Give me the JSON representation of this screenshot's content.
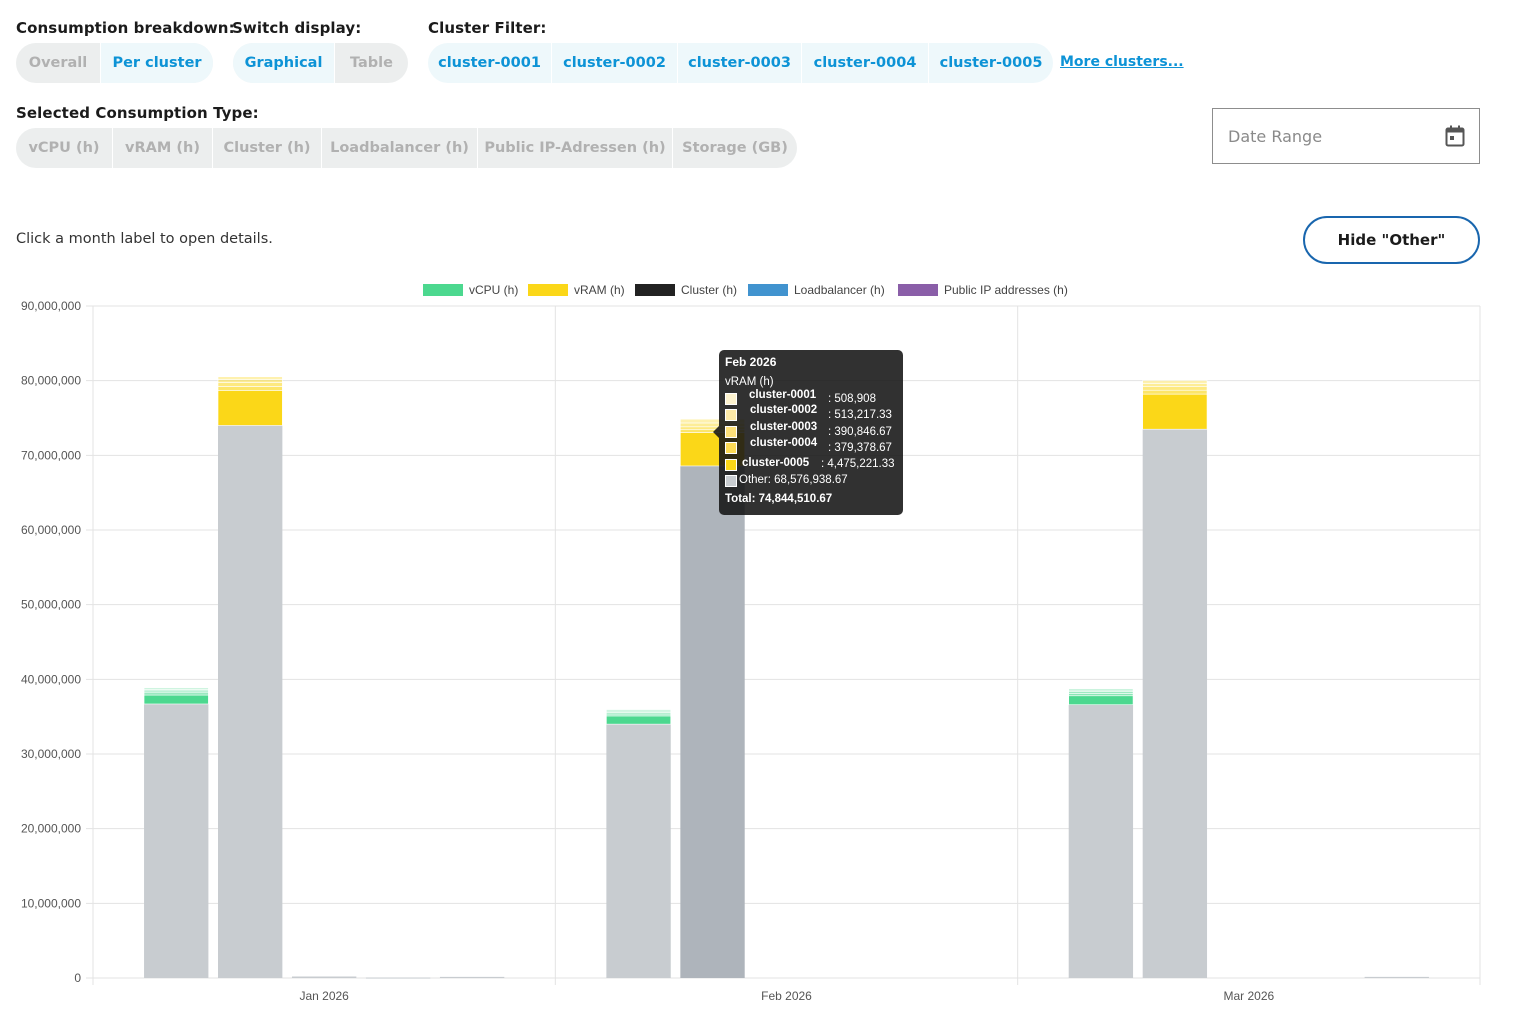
{
  "controls": {
    "breakdown": {
      "label": "Consumption breakdown:",
      "options": [
        "Overall",
        "Per cluster"
      ],
      "active": 1
    },
    "display": {
      "label": "Switch display:",
      "options": [
        "Graphical",
        "Table"
      ],
      "active": 0
    },
    "cluster_filter": {
      "label": "Cluster Filter:",
      "clusters": [
        "cluster-0001",
        "cluster-0002",
        "cluster-0003",
        "cluster-0004",
        "cluster-0005"
      ],
      "more_label": "More clusters..."
    },
    "consumption_type": {
      "label": "Selected Consumption Type:",
      "options": [
        "vCPU (h)",
        "vRAM (h)",
        "Cluster (h)",
        "Loadbalancer (h)",
        "Public IP-Adressen (h)",
        "Storage (GB)"
      ]
    },
    "date_range": {
      "placeholder": "Date Range"
    },
    "hint": "Click a month label to open details.",
    "hide_other_label": "Hide \"Other\""
  },
  "chart_data": {
    "type": "bar",
    "stacked": true,
    "categories": [
      "Jan 2026",
      "Feb 2026",
      "Mar 2026"
    ],
    "ylim": [
      0,
      90000000
    ],
    "yticks": [
      0,
      10000000,
      20000000,
      30000000,
      40000000,
      50000000,
      60000000,
      70000000,
      80000000,
      90000000
    ],
    "ytick_labels": [
      "0",
      "10,000,000",
      "20,000,000",
      "30,000,000",
      "40,000,000",
      "50,000,000",
      "60,000,000",
      "70,000,000",
      "80,000,000",
      "90,000,000"
    ],
    "legend": [
      {
        "name": "vCPU (h)",
        "color": "#4cd88f"
      },
      {
        "name": "vRAM (h)",
        "color": "#fbd718"
      },
      {
        "name": "Cluster (h)",
        "color": "#222222"
      },
      {
        "name": "Loadbalancer (h)",
        "color": "#4193cf"
      },
      {
        "name": "Public IP addresses (h)",
        "color": "#8a5ea8"
      }
    ],
    "legend_position": "top",
    "other_color": "#c8ccd0",
    "grid": true,
    "groups": [
      {
        "series": "vCPU (h)",
        "color": "#4cd88f",
        "other": [
          36700000,
          34000000,
          36600000
        ],
        "clusters": [
          [
            1200000,
            300000,
            250000,
            200000,
            200000
          ],
          [
            1100000,
            250000,
            200000,
            200000,
            200000
          ],
          [
            1200000,
            300000,
            250000,
            200000,
            200000
          ]
        ]
      },
      {
        "series": "vRAM (h)",
        "color": "#fbd718",
        "other": [
          74000000,
          68576938.67,
          73500000
        ],
        "clusters": [
          [
            4700000,
            520000,
            520000,
            400000,
            390000
          ],
          [
            4475221.33,
            379378.67,
            390846.67,
            513217.33,
            508908
          ],
          [
            4700000,
            520000,
            520000,
            400000,
            390000
          ]
        ]
      },
      {
        "series": "Cluster (h)",
        "color": "#222222",
        "other": [
          200000,
          0,
          0
        ],
        "clusters": [
          [
            0,
            0,
            0,
            0,
            0
          ],
          [
            0,
            0,
            0,
            0,
            0
          ],
          [
            0,
            0,
            0,
            0,
            0
          ]
        ]
      },
      {
        "series": "Loadbalancer (h)",
        "color": "#4193cf",
        "other": [
          60000,
          0,
          0
        ],
        "clusters": [
          [
            0,
            0,
            0,
            0,
            0
          ],
          [
            0,
            0,
            0,
            0,
            0
          ],
          [
            0,
            0,
            0,
            0,
            0
          ]
        ]
      },
      {
        "series": "Public IP addresses (h)",
        "color": "#8a5ea8",
        "other": [
          150000,
          0,
          150000
        ],
        "clusters": [
          [
            0,
            0,
            0,
            0,
            0
          ],
          [
            0,
            0,
            0,
            0,
            0
          ],
          [
            0,
            0,
            0,
            0,
            0
          ]
        ]
      }
    ],
    "tooltip": {
      "title": "Feb 2026",
      "subtitle": "vRAM (h)",
      "rows": [
        {
          "name": "cluster-0001",
          "value": ": 508,908",
          "color": "#fdf3cf"
        },
        {
          "name": "cluster-0002",
          "value": ": 513,217.33",
          "color": "#fce9a8"
        },
        {
          "name": "cluster-0003",
          "value": ": 390,846.67",
          "color": "#fde07a"
        },
        {
          "name": "cluster-0004",
          "value": ": 379,378.67",
          "color": "#fddb55"
        },
        {
          "name": "cluster-0005",
          "value": ": 4,475,221.33",
          "color": "#fbd718"
        },
        {
          "name": "Other: 68,576,938.67",
          "value": "",
          "color": "#c8ccd0"
        }
      ],
      "total": "Total: 74,844,510.67"
    }
  }
}
